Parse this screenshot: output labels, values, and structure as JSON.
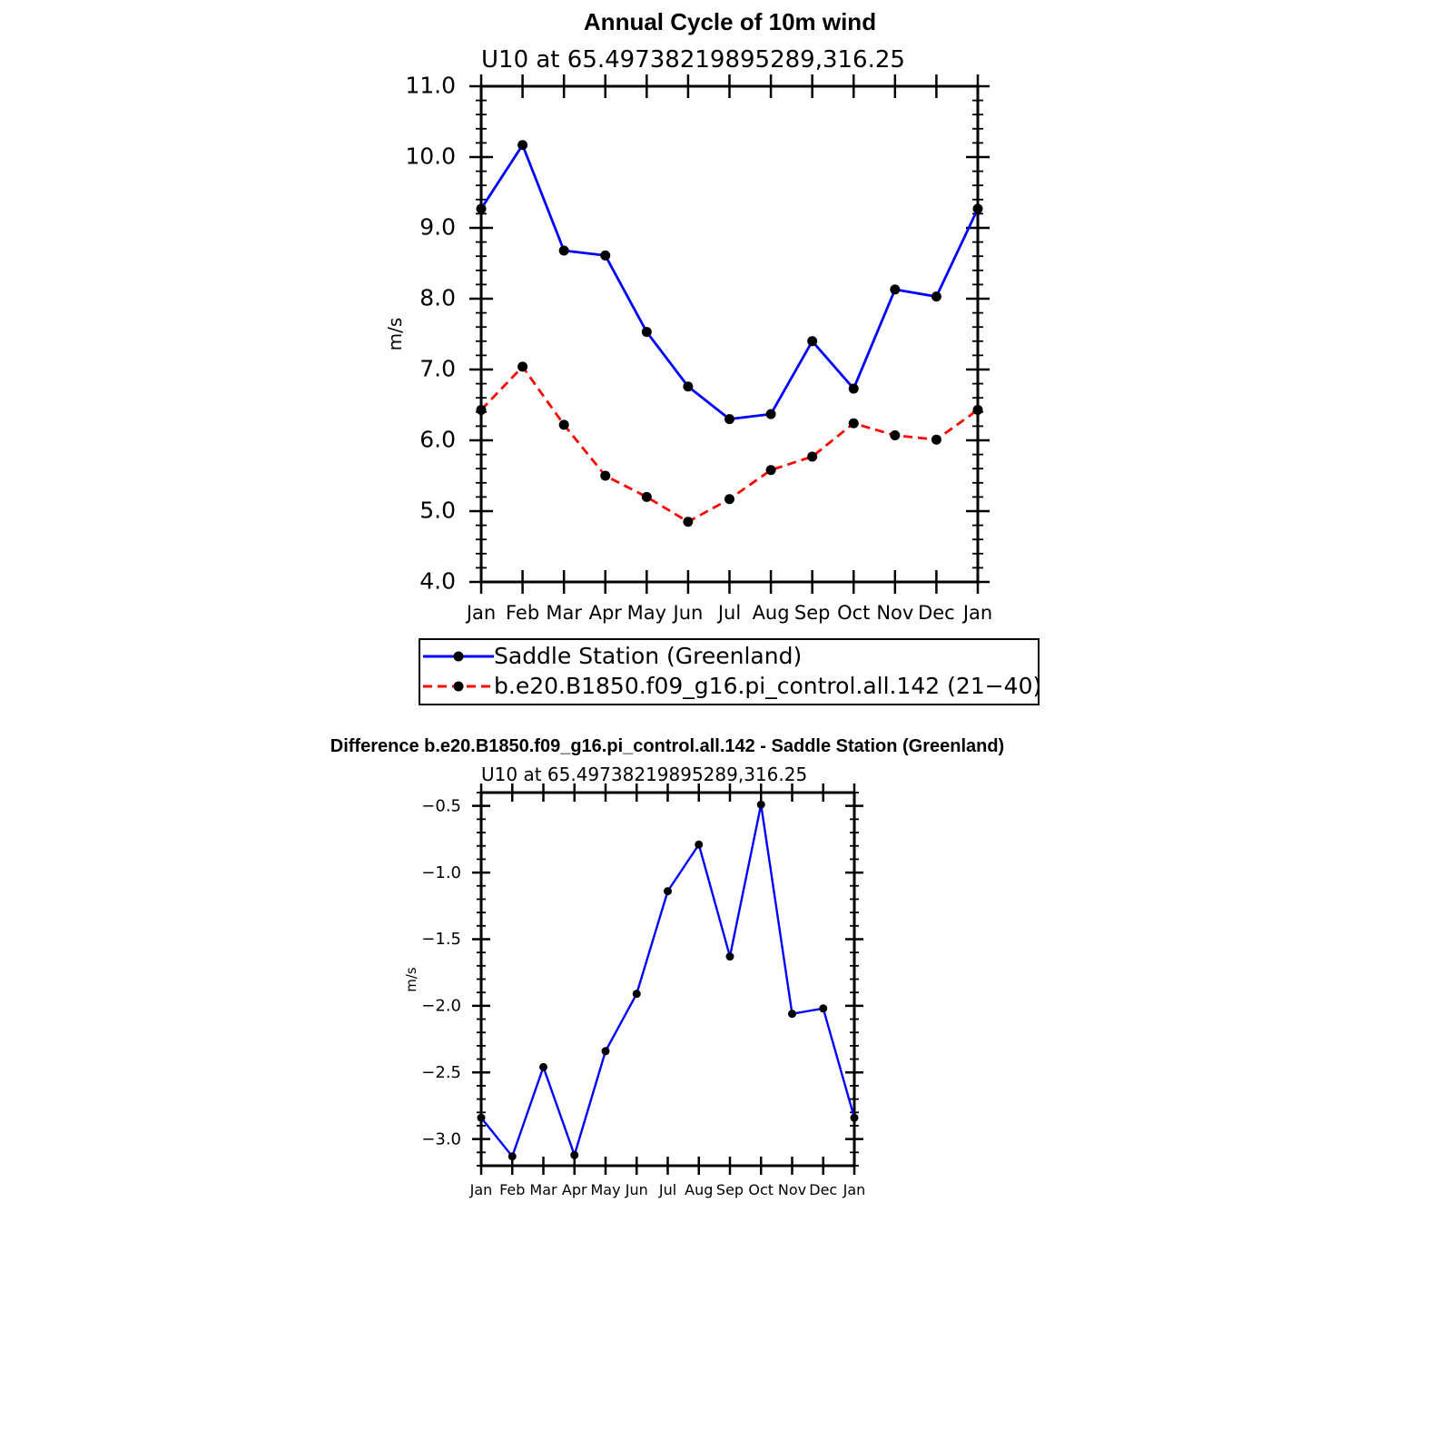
{
  "chart_data": [
    {
      "type": "line",
      "title": "Annual Cycle of 10m wind",
      "subtitle": "U10  at  65.49738219895289,316.25",
      "xlabel": "",
      "ylabel": "m/s",
      "categories": [
        "Jan",
        "Feb",
        "Mar",
        "Apr",
        "May",
        "Jun",
        "Jul",
        "Aug",
        "Sep",
        "Oct",
        "Nov",
        "Dec",
        "Jan"
      ],
      "ylim": [
        4.0,
        11.0
      ],
      "yticks": [
        "4.0",
        "5.0",
        "6.0",
        "7.0",
        "8.0",
        "9.0",
        "10.0",
        "11.0"
      ],
      "series": [
        {
          "name": "Saddle Station (Greenland)",
          "color": "#0000ff",
          "dash": "solid",
          "values": [
            9.27,
            10.17,
            8.68,
            8.61,
            7.53,
            6.76,
            6.3,
            6.37,
            7.4,
            6.73,
            8.13,
            8.03,
            9.27
          ]
        },
        {
          "name": "b.e20.B1850.f09_g16.pi_control.all.142 (21−40)",
          "color": "#ff0000",
          "dash": "dashed",
          "values": [
            6.43,
            7.04,
            6.22,
            5.5,
            5.2,
            4.85,
            5.17,
            5.58,
            5.77,
            6.24,
            6.07,
            6.01,
            6.43
          ]
        }
      ],
      "legend": "below"
    },
    {
      "type": "line",
      "title": "Difference b.e20.B1850.f09_g16.pi_control.all.142 - Saddle Station (Greenland)",
      "subtitle": "U10  at  65.49738219895289,316.25",
      "xlabel": "",
      "ylabel": "m/s",
      "categories": [
        "Jan",
        "Feb",
        "Mar",
        "Apr",
        "May",
        "Jun",
        "Jul",
        "Aug",
        "Sep",
        "Oct",
        "Nov",
        "Dec",
        "Jan"
      ],
      "ylim": [
        -3.2,
        -0.4
      ],
      "yticks": [
        "−3.0",
        "−2.5",
        "−2.0",
        "−1.5",
        "−1.0",
        "−0.5"
      ],
      "series": [
        {
          "color": "#0000ff",
          "dash": "solid",
          "values": [
            -2.84,
            -3.13,
            -2.46,
            -3.12,
            -2.34,
            -1.91,
            -1.14,
            -0.79,
            -1.63,
            -0.49,
            -2.06,
            -2.02,
            -2.84
          ]
        }
      ]
    }
  ]
}
